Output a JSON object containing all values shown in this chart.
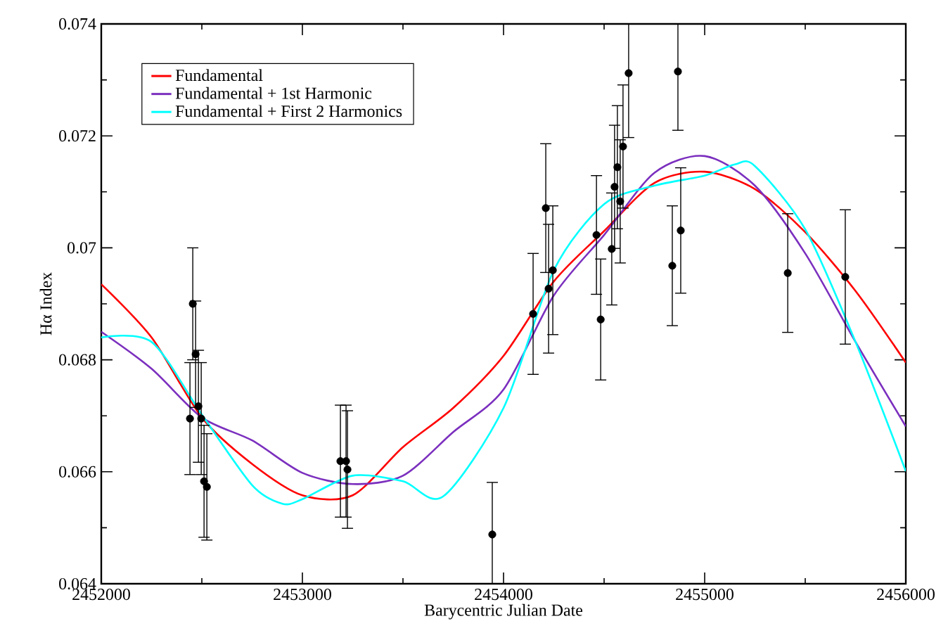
{
  "chart_data": {
    "type": "line",
    "xlabel": "Barycentric Julian Date",
    "ylabel": "Hα Index",
    "xlim": [
      2452000,
      2456000
    ],
    "ylim": [
      0.064,
      0.074
    ],
    "xticks": [
      2452000,
      2453000,
      2454000,
      2455000,
      2456000
    ],
    "yticks": [
      0.064,
      0.066,
      0.068,
      0.07,
      0.072,
      0.074
    ],
    "grid": false,
    "legend": "top left",
    "marker": "none",
    "series": [
      {
        "name": "Fundamental",
        "color": "#ff0000",
        "line_style": "solid",
        "x": [
          2452000,
          2452250,
          2452500,
          2452750,
          2453000,
          2453250,
          2453500,
          2453750,
          2454000,
          2454250,
          2454500,
          2454750,
          2455000,
          2455250,
          2455500,
          2455750,
          2456000
        ],
        "values": [
          0.06935,
          0.0684,
          0.06697,
          0.06614,
          0.06558,
          0.06558,
          0.06644,
          0.06714,
          0.06807,
          0.0694,
          0.0703,
          0.07116,
          0.07136,
          0.07105,
          0.07028,
          0.06923,
          0.06795
        ]
      },
      {
        "name": "Fundamental + 1st Harmonic",
        "color": "#7b2fbe",
        "line_style": "solid",
        "x": [
          2452000,
          2452250,
          2452500,
          2452750,
          2453000,
          2453250,
          2453500,
          2453750,
          2454000,
          2454250,
          2454500,
          2454750,
          2455000,
          2455250,
          2455500,
          2455750,
          2456000
        ],
        "values": [
          0.0685,
          0.06784,
          0.06697,
          0.06656,
          0.06598,
          0.06578,
          0.06593,
          0.06671,
          0.06747,
          0.06915,
          0.07023,
          0.07134,
          0.07164,
          0.07111,
          0.0699,
          0.06832,
          0.06681
        ]
      },
      {
        "name": "Fundamental + First 2 Harmonics",
        "color": "#00ffff",
        "line_style": "solid",
        "x": [
          2452000,
          2452250,
          2452500,
          2452750,
          2452900,
          2453000,
          2453250,
          2453500,
          2453700,
          2454000,
          2454250,
          2454500,
          2454750,
          2455000,
          2455150,
          2455250,
          2455500,
          2455750,
          2456000
        ],
        "values": [
          0.0684,
          0.06832,
          0.06702,
          0.06576,
          0.06543,
          0.06551,
          0.06593,
          0.06583,
          0.06556,
          0.06714,
          0.0696,
          0.07078,
          0.07111,
          0.07129,
          0.07149,
          0.07146,
          0.07033,
          0.06832,
          0.06601
        ]
      },
      {
        "type": "scatter",
        "color": "#000000",
        "marker": "circle",
        "x": [
          2452455,
          2452469,
          2452483,
          2452441,
          2452497,
          2452511,
          2452525,
          2453189,
          2453217,
          2453224,
          2453944,
          2454147,
          2454210,
          2454224,
          2454245,
          2454462,
          2454483,
          2454538,
          2454552,
          2454566,
          2454580,
          2454594,
          2454622,
          2454839,
          2454867,
          2454881,
          2455413,
          2455699
        ],
        "values": [
          0.069,
          0.0681,
          0.06717,
          0.06695,
          0.06695,
          0.06583,
          0.06573,
          0.06619,
          0.06619,
          0.06604,
          0.06488,
          0.06882,
          0.07071,
          0.06927,
          0.0696,
          0.07023,
          0.06872,
          0.06998,
          0.07109,
          0.07144,
          0.07083,
          0.07181,
          0.07312,
          0.06968,
          0.07315,
          0.07031,
          0.06955,
          0.06948
        ],
        "errors": [
          0.001,
          0.00095,
          0.001,
          0.001,
          0.001,
          0.001,
          0.00095,
          0.001,
          0.001,
          0.00105,
          0.00093,
          0.00108,
          0.00115,
          0.00115,
          0.00115,
          0.00106,
          0.00108,
          0.001,
          0.0011,
          0.0011,
          0.0011,
          0.0011,
          0.00115,
          0.00107,
          0.00105,
          0.00112,
          0.00106,
          0.0012
        ]
      }
    ]
  }
}
